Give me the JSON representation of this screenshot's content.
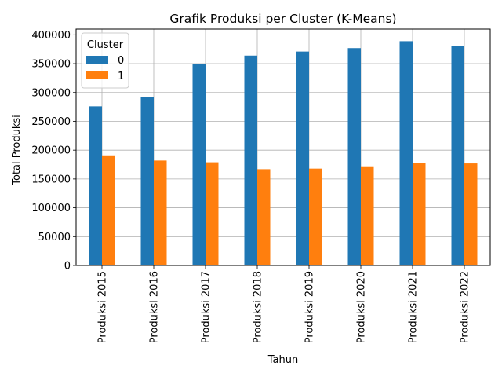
{
  "chart_data": {
    "type": "bar",
    "title": "Grafik Produksi per Cluster (K-Means)",
    "xlabel": "Tahun",
    "ylabel": "Total Produksi",
    "categories": [
      "Produksi 2015",
      "Produksi 2016",
      "Produksi 2017",
      "Produksi 2018",
      "Produksi 2019",
      "Produksi 2020",
      "Produksi 2021",
      "Produksi 2022"
    ],
    "series": [
      {
        "name": "0",
        "color": "#1f77b4",
        "values": [
          276000,
          292000,
          349000,
          364000,
          371000,
          377000,
          389000,
          381000
        ]
      },
      {
        "name": "1",
        "color": "#ff7f0e",
        "values": [
          191000,
          182000,
          179000,
          167000,
          168000,
          172000,
          178000,
          177000
        ]
      }
    ],
    "ylim": [
      0,
      410000
    ],
    "yticks": [
      0,
      50000,
      100000,
      150000,
      200000,
      250000,
      300000,
      350000,
      400000
    ],
    "grid": true,
    "legend": {
      "title": "Cluster",
      "placement": "top-left"
    }
  }
}
